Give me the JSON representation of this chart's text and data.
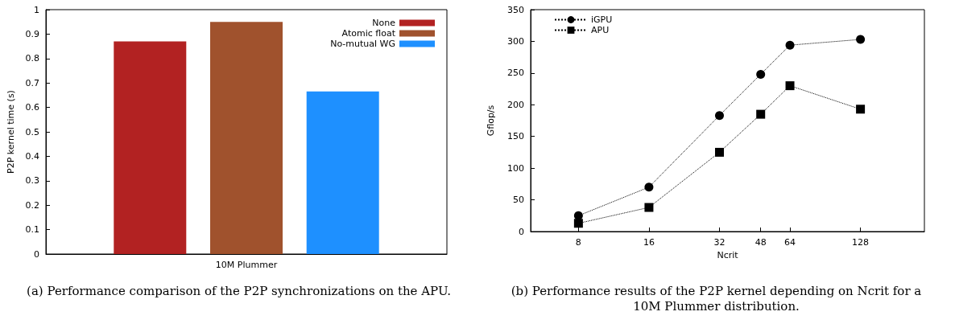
{
  "chart_data": [
    {
      "type": "bar",
      "categories": [
        "10M Plummer"
      ],
      "ylabel": "P2P kernel time (s)",
      "ylim": [
        0,
        1
      ],
      "yticks": [
        0,
        0.1,
        0.2,
        0.3,
        0.4,
        0.5,
        0.6,
        0.7,
        0.8,
        0.9,
        1
      ],
      "grid": false,
      "legend": "top right",
      "series": [
        {
          "name": "None",
          "color": "#b22222",
          "values": [
            0.87
          ]
        },
        {
          "name": "Atomic float",
          "color": "#a0522d",
          "values": [
            0.95
          ]
        },
        {
          "name": "No-mutual WG",
          "color": "#1e90ff",
          "values": [
            0.665
          ]
        }
      ],
      "annotations": [
        "(a) Performance comparison of the P2P synchronizations on the APU."
      ]
    },
    {
      "type": "line",
      "x": [
        8,
        16,
        32,
        48,
        64,
        128
      ],
      "xlabel": "Ncrit",
      "ylabel": "Gflop/s",
      "log": "x",
      "xlim": [
        5,
        240
      ],
      "xticks": [
        8,
        16,
        32,
        48,
        64,
        128
      ],
      "ylim": [
        0,
        350
      ],
      "yticks": [
        0,
        50,
        100,
        150,
        200,
        250,
        300,
        350
      ],
      "grid": false,
      "legend": "top left",
      "line_style": "dotted",
      "series": [
        {
          "name": "iGPU",
          "color": "#000000",
          "marker": "circle",
          "values": [
            25,
            70,
            183,
            248,
            294,
            303
          ]
        },
        {
          "name": "APU",
          "color": "#000000",
          "marker": "square",
          "values": [
            13,
            38,
            125,
            185,
            230,
            193
          ]
        }
      ],
      "annotations": [
        "(b) Performance results of the P2P kernel depending on Ncrit for a 10M Plummer distribution."
      ]
    }
  ]
}
